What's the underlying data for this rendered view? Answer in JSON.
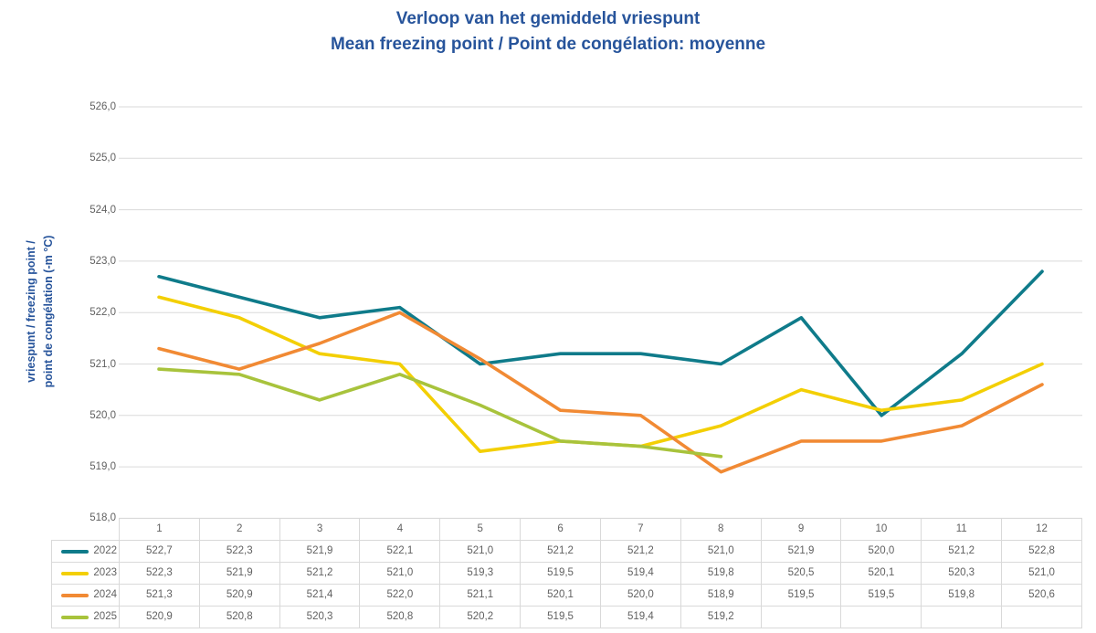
{
  "title": {
    "line1": "Verloop van het gemiddeld vriespunt",
    "line2": "Mean freezing point / Point de congélation: moyenne"
  },
  "y_axis": {
    "title_line1": "vriespunt / freezing point /",
    "title_line2": "point de congélation (-m °C)",
    "tick_labels": [
      "526,0",
      "525,0",
      "524,0",
      "523,0",
      "522,0",
      "521,0",
      "520,0",
      "519,0",
      "518,0"
    ],
    "max": 526,
    "min": 518,
    "step": 1
  },
  "chart_data": {
    "type": "line",
    "title": "Verloop van het gemiddeld vriespunt / Mean freezing point / Point de congélation: moyenne",
    "xlabel": "",
    "ylabel": "vriespunt / freezing point / point de congélation (-m °C)",
    "ylim": [
      518,
      526
    ],
    "grid": "horizontal",
    "legend_position": "table-left-column",
    "categories": [
      "1",
      "2",
      "3",
      "4",
      "5",
      "6",
      "7",
      "8",
      "9",
      "10",
      "11",
      "12"
    ],
    "series": [
      {
        "name": "2022",
        "color": "#0F7B8A",
        "values": [
          522.7,
          522.3,
          521.9,
          522.1,
          521.0,
          521.2,
          521.2,
          521.0,
          521.9,
          520.0,
          521.2,
          522.8
        ]
      },
      {
        "name": "2023",
        "color": "#F3CF04",
        "values": [
          522.3,
          521.9,
          521.2,
          521.0,
          519.3,
          519.5,
          519.4,
          519.8,
          520.5,
          520.1,
          520.3,
          521.0
        ]
      },
      {
        "name": "2024",
        "color": "#F18A34",
        "values": [
          521.3,
          520.9,
          521.4,
          522.0,
          521.1,
          520.1,
          520.0,
          518.9,
          519.5,
          519.5,
          519.8,
          520.6
        ]
      },
      {
        "name": "2025",
        "color": "#A8C33C",
        "values": [
          520.9,
          520.8,
          520.3,
          520.8,
          520.2,
          519.5,
          519.4,
          519.2,
          null,
          null,
          null,
          null
        ]
      }
    ]
  },
  "table": {
    "columns": [
      "1",
      "2",
      "3",
      "4",
      "5",
      "6",
      "7",
      "8",
      "9",
      "10",
      "11",
      "12"
    ],
    "rows": [
      {
        "year": "2022",
        "color": "#0F7B8A",
        "cells": [
          "522,7",
          "522,3",
          "521,9",
          "522,1",
          "521,0",
          "521,2",
          "521,2",
          "521,0",
          "521,9",
          "520,0",
          "521,2",
          "522,8"
        ]
      },
      {
        "year": "2023",
        "color": "#F3CF04",
        "cells": [
          "522,3",
          "521,9",
          "521,2",
          "521,0",
          "519,3",
          "519,5",
          "519,4",
          "519,8",
          "520,5",
          "520,1",
          "520,3",
          "521,0"
        ]
      },
      {
        "year": "2024",
        "color": "#F18A34",
        "cells": [
          "521,3",
          "520,9",
          "521,4",
          "522,0",
          "521,1",
          "520,1",
          "520,0",
          "518,9",
          "519,5",
          "519,5",
          "519,8",
          "520,6"
        ]
      },
      {
        "year": "2025",
        "color": "#A8C33C",
        "cells": [
          "520,9",
          "520,8",
          "520,3",
          "520,8",
          "520,2",
          "519,5",
          "519,4",
          "519,2",
          "",
          "",
          "",
          ""
        ]
      }
    ]
  },
  "colors": {
    "title_text": "#27549B",
    "axis_title_text": "#27549B",
    "tick_text": "#616161",
    "table_text": "#616161",
    "gridline": "#DADADA",
    "table_border": "#D9D9D9",
    "background": "#FFFFFF"
  }
}
